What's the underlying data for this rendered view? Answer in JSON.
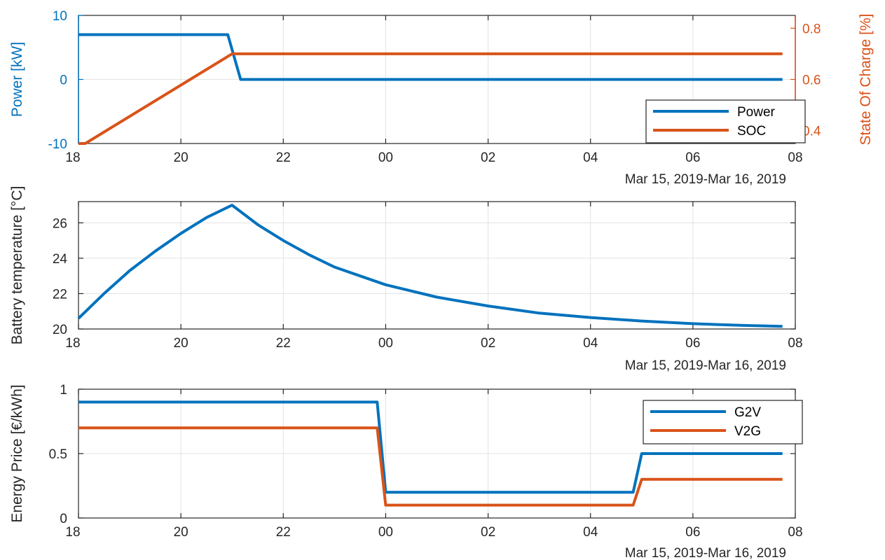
{
  "chart_data": [
    {
      "type": "line",
      "date_caption": "Mar 15, 2019-Mar 16, 2019",
      "x_ticks": [
        "18",
        "20",
        "22",
        "00",
        "02",
        "04",
        "06",
        "08"
      ],
      "xlim": [
        "2019-03-15 18:00",
        "2019-03-16 08:00"
      ],
      "grid": true,
      "legend_position": "bottom-right",
      "y_left": {
        "label": "Power [kW]",
        "ticks": [
          "-10",
          "0",
          "10"
        ],
        "lim": [
          -10,
          10
        ],
        "color": "#0072BD"
      },
      "y_right": {
        "label": "State Of Charge [%]",
        "ticks": [
          "0.4",
          "0.6",
          "0.8"
        ],
        "lim": [
          0.35,
          0.85
        ],
        "color": "#D95319"
      },
      "series": [
        {
          "name": "Power",
          "axis": "left",
          "color": "#0072BD",
          "points": [
            [
              "2019-03-15 18:00",
              7
            ],
            [
              "2019-03-15 20:55",
              7
            ],
            [
              "2019-03-15 21:10",
              0
            ],
            [
              "2019-03-16 07:45",
              0
            ]
          ]
        },
        {
          "name": "SOC",
          "axis": "right",
          "color": "#D95319",
          "points": [
            [
              "2019-03-15 18:00",
              0.35
            ],
            [
              "2019-03-15 18:08",
              0.35
            ],
            [
              "2019-03-15 21:00",
              0.7
            ],
            [
              "2019-03-16 07:45",
              0.7
            ]
          ]
        }
      ]
    },
    {
      "type": "line",
      "date_caption": "Mar 15, 2019-Mar 16, 2019",
      "x_ticks": [
        "18",
        "20",
        "22",
        "00",
        "02",
        "04",
        "06",
        "08"
      ],
      "xlim": [
        "2019-03-15 18:00",
        "2019-03-16 08:00"
      ],
      "grid": true,
      "y_left": {
        "label": "Battery temperature [°C]",
        "ticks": [
          "20",
          "22",
          "24",
          "26"
        ],
        "lim": [
          20,
          27.2
        ]
      },
      "series": [
        {
          "color": "#0072BD",
          "points": [
            [
              "2019-03-15 18:00",
              20.6
            ],
            [
              "2019-03-15 18:30",
              22.0
            ],
            [
              "2019-03-15 19:00",
              23.3
            ],
            [
              "2019-03-15 19:30",
              24.4
            ],
            [
              "2019-03-15 20:00",
              25.4
            ],
            [
              "2019-03-15 20:30",
              26.3
            ],
            [
              "2019-03-15 21:00",
              27.0
            ],
            [
              "2019-03-15 21:30",
              25.9
            ],
            [
              "2019-03-15 22:00",
              25.0
            ],
            [
              "2019-03-15 22:30",
              24.2
            ],
            [
              "2019-03-15 23:00",
              23.5
            ],
            [
              "2019-03-15 23:30",
              23.0
            ],
            [
              "2019-03-16 00:00",
              22.5
            ],
            [
              "2019-03-16 01:00",
              21.8
            ],
            [
              "2019-03-16 02:00",
              21.3
            ],
            [
              "2019-03-16 03:00",
              20.9
            ],
            [
              "2019-03-16 04:00",
              20.65
            ],
            [
              "2019-03-16 05:00",
              20.45
            ],
            [
              "2019-03-16 06:00",
              20.3
            ],
            [
              "2019-03-16 07:00",
              20.2
            ],
            [
              "2019-03-16 07:45",
              20.15
            ]
          ]
        }
      ]
    },
    {
      "type": "line",
      "date_caption": "Mar 15, 2019-Mar 16, 2019",
      "x_ticks": [
        "18",
        "20",
        "22",
        "00",
        "02",
        "04",
        "06",
        "08"
      ],
      "xlim": [
        "2019-03-15 18:00",
        "2019-03-16 08:00"
      ],
      "grid": true,
      "legend_position": "top-right",
      "y_left": {
        "label": "Energy Price [€/kWh]",
        "ticks": [
          "0",
          "0.5",
          "1"
        ],
        "lim": [
          0,
          1
        ]
      },
      "series": [
        {
          "name": "G2V",
          "color": "#0072BD",
          "points": [
            [
              "2019-03-15 18:00",
              0.9
            ],
            [
              "2019-03-15 23:50",
              0.9
            ],
            [
              "2019-03-16 00:00",
              0.2
            ],
            [
              "2019-03-16 04:50",
              0.2
            ],
            [
              "2019-03-16 05:00",
              0.5
            ],
            [
              "2019-03-16 07:45",
              0.5
            ]
          ]
        },
        {
          "name": "V2G",
          "color": "#D95319",
          "points": [
            [
              "2019-03-15 18:00",
              0.7
            ],
            [
              "2019-03-15 23:50",
              0.7
            ],
            [
              "2019-03-16 00:00",
              0.1
            ],
            [
              "2019-03-16 04:50",
              0.1
            ],
            [
              "2019-03-16 05:00",
              0.3
            ],
            [
              "2019-03-16 07:45",
              0.3
            ]
          ]
        }
      ]
    }
  ]
}
